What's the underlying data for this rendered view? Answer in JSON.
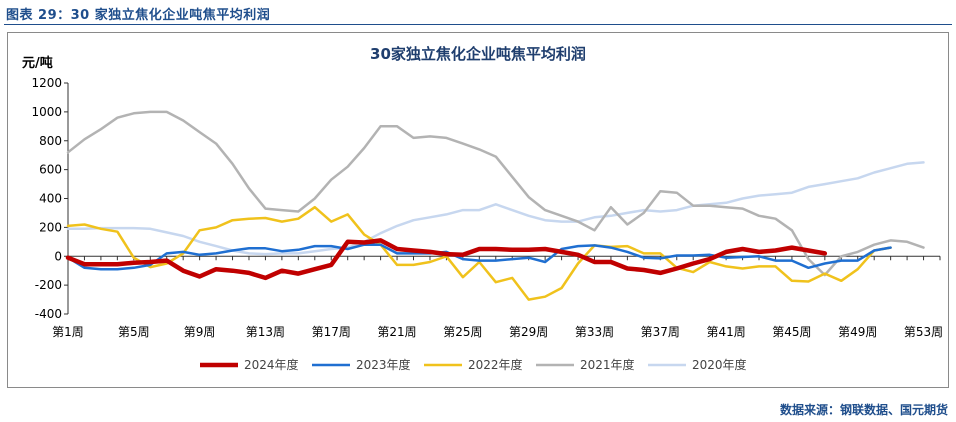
{
  "caption": "图表 29：30 家独立焦化企业吨焦平均利润",
  "source": "数据来源：钢联数据、国元期货",
  "chart_data": {
    "type": "line",
    "title": "30家独立焦化企业吨焦平均利润",
    "ylabel": "元/吨",
    "xlabel": "",
    "ylim": [
      -400,
      1200
    ],
    "yticks": [
      -400,
      -200,
      0,
      200,
      400,
      600,
      800,
      1000,
      1200
    ],
    "xlim": [
      1,
      54
    ],
    "xtick_labels": [
      "第1周",
      "第5周",
      "第9周",
      "第13周",
      "第17周",
      "第21周",
      "第25周",
      "第29周",
      "第33周",
      "第37周",
      "第41周",
      "第45周",
      "第49周",
      "第53周"
    ],
    "xtick_values": [
      1,
      5,
      9,
      13,
      17,
      21,
      25,
      29,
      33,
      37,
      41,
      45,
      49,
      53
    ],
    "legend_position": "bottom",
    "grid": false,
    "series": [
      {
        "name": "2024年度",
        "color": "#c00000",
        "width": 4.5,
        "x": [
          1,
          2,
          3,
          4,
          5,
          6,
          7,
          8,
          9,
          10,
          11,
          12,
          13,
          14,
          15,
          16,
          17,
          18,
          19,
          20,
          21,
          22,
          23,
          24,
          25,
          26,
          27,
          28,
          29,
          30,
          31,
          32,
          33,
          34,
          35,
          36,
          37,
          38,
          39,
          40,
          41,
          42,
          43,
          44,
          45,
          46,
          47
        ],
        "y": [
          -10,
          -55,
          -55,
          -55,
          -45,
          -40,
          -30,
          -100,
          -140,
          -90,
          -100,
          -115,
          -150,
          -100,
          -120,
          -90,
          -60,
          100,
          95,
          110,
          50,
          40,
          30,
          15,
          10,
          50,
          50,
          45,
          45,
          50,
          30,
          10,
          -40,
          -40,
          -85,
          -95,
          -115,
          -85,
          -50,
          -20,
          30,
          50,
          30,
          40,
          60,
          40,
          20
        ]
      },
      {
        "name": "2023年度",
        "color": "#1f6fd1",
        "width": 2.5,
        "x": [
          1,
          2,
          3,
          4,
          5,
          6,
          7,
          8,
          9,
          10,
          11,
          12,
          13,
          14,
          15,
          16,
          17,
          18,
          19,
          20,
          21,
          22,
          23,
          24,
          25,
          26,
          27,
          28,
          29,
          30,
          31,
          32,
          33,
          34,
          35,
          36,
          37,
          38,
          39,
          40,
          41,
          42,
          43,
          44,
          45,
          46,
          47,
          48,
          49,
          50,
          51
        ],
        "y": [
          -10,
          -80,
          -90,
          -90,
          -80,
          -60,
          20,
          30,
          10,
          20,
          40,
          55,
          55,
          35,
          45,
          70,
          70,
          50,
          80,
          80,
          20,
          20,
          20,
          30,
          -20,
          -30,
          -30,
          -20,
          -10,
          -40,
          50,
          70,
          75,
          60,
          30,
          -10,
          -15,
          5,
          5,
          10,
          -10,
          -5,
          0,
          -30,
          -30,
          -80,
          -50,
          -30,
          -30,
          40,
          60
        ]
      },
      {
        "name": "2022年度",
        "color": "#f0c21c",
        "width": 2.5,
        "x": [
          1,
          2,
          3,
          4,
          5,
          6,
          7,
          8,
          9,
          10,
          11,
          12,
          13,
          14,
          15,
          16,
          17,
          18,
          19,
          20,
          21,
          22,
          23,
          24,
          25,
          26,
          27,
          28,
          29,
          30,
          31,
          32,
          33,
          34,
          35,
          36,
          37,
          38,
          39,
          40,
          41,
          42,
          43,
          44,
          45,
          46,
          47,
          48,
          49,
          50,
          51
        ],
        "y": [
          210,
          220,
          190,
          170,
          -10,
          -75,
          -50,
          20,
          180,
          200,
          250,
          260,
          265,
          240,
          260,
          340,
          240,
          290,
          150,
          80,
          -60,
          -60,
          -40,
          0,
          -145,
          -40,
          -180,
          -150,
          -300,
          -280,
          -220,
          -50,
          75,
          65,
          70,
          20,
          20,
          -80,
          -110,
          -40,
          -70,
          -85,
          -70,
          -70,
          -170,
          -175,
          -120,
          -170,
          -90,
          40,
          60
        ]
      },
      {
        "name": "2021年度",
        "color": "#b3b3b3",
        "width": 2.5,
        "x": [
          1,
          2,
          3,
          4,
          5,
          6,
          7,
          8,
          9,
          10,
          11,
          12,
          13,
          14,
          15,
          16,
          17,
          18,
          19,
          20,
          21,
          22,
          23,
          24,
          25,
          26,
          27,
          28,
          29,
          30,
          31,
          32,
          33,
          34,
          35,
          36,
          37,
          38,
          39,
          40,
          41,
          42,
          43,
          44,
          45,
          46,
          47,
          48,
          49,
          50,
          51,
          52,
          53
        ],
        "y": [
          720,
          810,
          880,
          960,
          990,
          1000,
          1000,
          940,
          860,
          780,
          640,
          470,
          330,
          320,
          310,
          400,
          530,
          620,
          750,
          900,
          900,
          820,
          830,
          820,
          780,
          740,
          690,
          550,
          410,
          320,
          280,
          240,
          180,
          340,
          220,
          300,
          450,
          440,
          350,
          350,
          340,
          330,
          280,
          260,
          180,
          -20,
          -130,
          0,
          30,
          80,
          110,
          100,
          60
        ]
      },
      {
        "name": "2020年度",
        "color": "#c7d7ef",
        "width": 2.5,
        "x": [
          1,
          2,
          3,
          4,
          5,
          6,
          7,
          8,
          9,
          10,
          11,
          12,
          13,
          14,
          15,
          16,
          17,
          18,
          19,
          20,
          21,
          22,
          23,
          24,
          25,
          26,
          27,
          28,
          29,
          30,
          31,
          32,
          33,
          34,
          35,
          36,
          37,
          38,
          39,
          40,
          41,
          42,
          43,
          44,
          45,
          46,
          47,
          48,
          49,
          50,
          51,
          52,
          53
        ],
        "y": [
          190,
          190,
          195,
          195,
          195,
          190,
          165,
          140,
          100,
          70,
          40,
          20,
          15,
          20,
          20,
          35,
          50,
          60,
          100,
          160,
          210,
          250,
          270,
          290,
          320,
          320,
          360,
          320,
          280,
          250,
          240,
          240,
          270,
          280,
          300,
          320,
          310,
          320,
          350,
          360,
          370,
          400,
          420,
          430,
          440,
          480,
          500,
          520,
          540,
          580,
          610,
          640,
          650
        ]
      }
    ]
  }
}
